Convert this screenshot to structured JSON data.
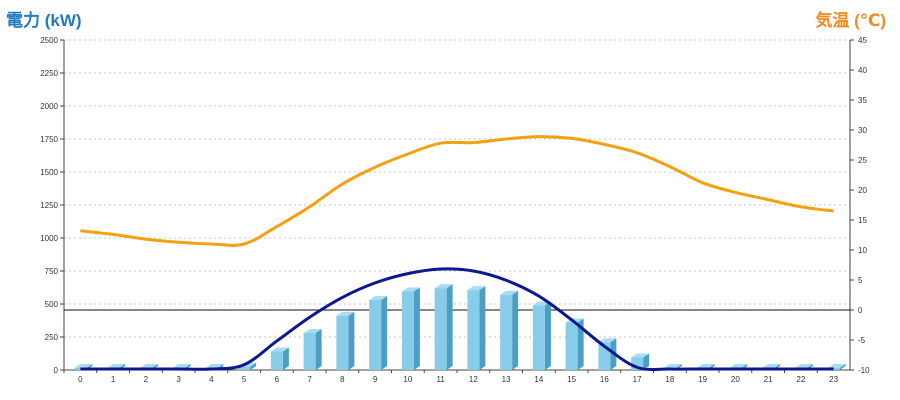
{
  "chart_data": {
    "type": "bar+line",
    "left_axis_title": "電力 (kW)",
    "right_axis_title": "気温 (℃)",
    "categories": [
      "0",
      "1",
      "2",
      "3",
      "4",
      "5",
      "6",
      "7",
      "8",
      "9",
      "10",
      "11",
      "12",
      "13",
      "14",
      "15",
      "16",
      "17",
      "18",
      "19",
      "20",
      "21",
      "22",
      "23"
    ],
    "left_ylim": [
      0,
      2500
    ],
    "left_ticks": [
      0,
      250,
      500,
      750,
      1000,
      1250,
      1500,
      1750,
      2000,
      2250,
      2500
    ],
    "right_ylim": [
      -10,
      45
    ],
    "right_ticks": [
      -10,
      -5,
      0,
      5,
      10,
      15,
      20,
      25,
      30,
      35,
      40,
      45
    ],
    "grid": true,
    "series": [
      {
        "type": "bar",
        "axis": "left",
        "values": [
          0,
          0,
          0,
          0,
          0,
          25,
          140,
          280,
          410,
          530,
          595,
          620,
          605,
          570,
          490,
          360,
          210,
          95,
          0,
          0,
          0,
          0,
          0,
          0
        ]
      },
      {
        "type": "line",
        "axis": "left",
        "values": [
          0,
          0,
          0,
          0,
          0,
          40,
          220,
          400,
          550,
          660,
          730,
          765,
          750,
          680,
          560,
          380,
          180,
          20,
          0,
          0,
          0,
          0,
          0,
          0
        ]
      },
      {
        "type": "line",
        "axis": "right",
        "values": [
          13.2,
          12.6,
          11.8,
          11.3,
          11.0,
          11.0,
          13.9,
          17.2,
          21.0,
          23.8,
          26.0,
          27.8,
          27.9,
          28.5,
          28.9,
          28.6,
          27.6,
          26.2,
          23.9,
          21.2,
          19.6,
          18.4,
          17.2,
          16.5
        ]
      }
    ],
    "reference_line_right": 0
  },
  "colors": {
    "bar": "#87cdea",
    "bar_dark": "#4d9ec2",
    "bar_top": "#a8dcf3",
    "power_line": "#0c1890",
    "temp_line": "#f5a011",
    "left_title": "#1f7bc0",
    "right_title": "#f08c22"
  }
}
